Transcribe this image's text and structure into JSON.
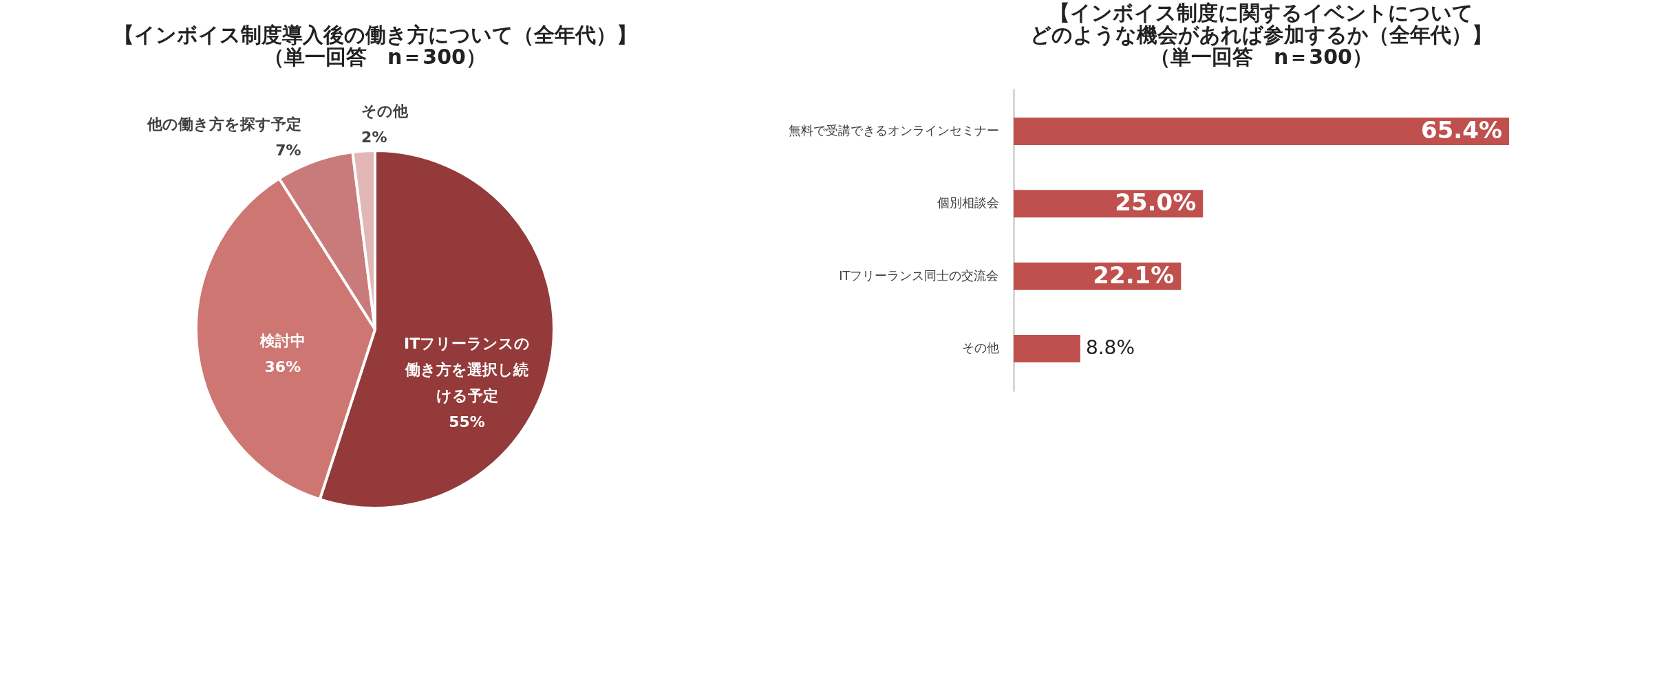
{
  "chart_data": [
    {
      "type": "pie",
      "title": "【インボイス制度導入後の働き方について（全年代）】（単一回答　n＝300）",
      "categories": [
        "ITフリーランスの働き方を選択し続ける予定",
        "検討中",
        "他の働き方を探す予定",
        "その他"
      ],
      "values": [
        55,
        36,
        7,
        2
      ],
      "value_labels": [
        "55%",
        "36%",
        "7%",
        "2%"
      ],
      "colors": [
        "#943a3a",
        "#cd7672",
        "#c97b7b",
        "#e3b6b6"
      ]
    },
    {
      "type": "bar",
      "orientation": "horizontal",
      "title": "【インボイス制度に関するイベントについてどのような機会があれば参加するか（全年代）】（単一回答　n＝300）",
      "categories": [
        "無料で受講できるオンラインセミナー",
        "個別相談会",
        "ITフリーランス同士の交流会",
        "その他"
      ],
      "values": [
        65.4,
        25.0,
        22.1,
        8.8
      ],
      "value_labels": [
        "65.4%",
        "25.0%",
        "22.1%",
        "8.8%"
      ],
      "color": "#c0504d"
    }
  ]
}
